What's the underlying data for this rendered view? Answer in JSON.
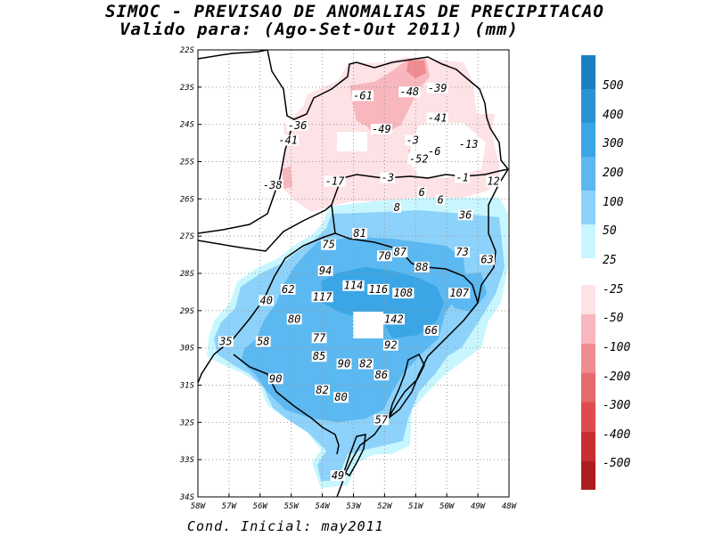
{
  "title_line1": "SIMOC - PREVISAO DE ANOMALIAS DE PRECIPITACAO",
  "title_line2": "Valido para: (Ago-Set-Out 2011) (mm)",
  "footer": "Cond. Inicial: may2011",
  "map": {
    "lon_range": [
      -58,
      -48
    ],
    "lat_range": [
      -34,
      -22
    ],
    "lon_ticks": [
      "58W",
      "57W",
      "56W",
      "55W",
      "54W",
      "53W",
      "52W",
      "51W",
      "50W",
      "49W",
      "48W"
    ],
    "lat_ticks": [
      "22S",
      "23S",
      "24S",
      "25S",
      "26S",
      "27S",
      "28S",
      "29S",
      "30S",
      "31S",
      "32S",
      "33S",
      "34S"
    ],
    "grid": "dotted",
    "value_labels": [
      {
        "text": "-61",
        "lon": -52.7,
        "lat": -23.3
      },
      {
        "text": "-48",
        "lon": -51.2,
        "lat": -23.2
      },
      {
        "text": "-39",
        "lon": -50.3,
        "lat": -23.1
      },
      {
        "text": "-41",
        "lon": -50.3,
        "lat": -23.9
      },
      {
        "text": "-36",
        "lon": -54.8,
        "lat": -24.1
      },
      {
        "text": "-49",
        "lon": -52.1,
        "lat": -24.2
      },
      {
        "text": "-41",
        "lon": -55.1,
        "lat": -24.5
      },
      {
        "text": "-3",
        "lon": -51.1,
        "lat": -24.5
      },
      {
        "text": "-13",
        "lon": -49.3,
        "lat": -24.6
      },
      {
        "text": "-6",
        "lon": -50.4,
        "lat": -24.8
      },
      {
        "text": "-52",
        "lon": -50.9,
        "lat": -25.0
      },
      {
        "text": "-38",
        "lon": -55.6,
        "lat": -25.7
      },
      {
        "text": "-17",
        "lon": -53.6,
        "lat": -25.6
      },
      {
        "text": "-3",
        "lon": -51.9,
        "lat": -25.5
      },
      {
        "text": "-1",
        "lon": -49.5,
        "lat": -25.5
      },
      {
        "text": "12",
        "lon": -48.5,
        "lat": -25.6
      },
      {
        "text": "8",
        "lon": -51.6,
        "lat": -26.3
      },
      {
        "text": "6",
        "lon": -50.8,
        "lat": -25.9
      },
      {
        "text": "6",
        "lon": -50.2,
        "lat": -26.1
      },
      {
        "text": "36",
        "lon": -49.4,
        "lat": -26.5
      },
      {
        "text": "81",
        "lon": -52.8,
        "lat": -27.0
      },
      {
        "text": "75",
        "lon": -53.8,
        "lat": -27.3
      },
      {
        "text": "87",
        "lon": -51.5,
        "lat": -27.5
      },
      {
        "text": "70",
        "lon": -52.0,
        "lat": -27.6
      },
      {
        "text": "73",
        "lon": -49.5,
        "lat": -27.5
      },
      {
        "text": "63",
        "lon": -48.7,
        "lat": -27.7
      },
      {
        "text": "88",
        "lon": -50.8,
        "lat": -27.9
      },
      {
        "text": "94",
        "lon": -53.9,
        "lat": -28.0
      },
      {
        "text": "62",
        "lon": -55.1,
        "lat": -28.5
      },
      {
        "text": "114",
        "lon": -53.0,
        "lat": -28.4
      },
      {
        "text": "116",
        "lon": -52.2,
        "lat": -28.5
      },
      {
        "text": "108",
        "lon": -51.4,
        "lat": -28.6
      },
      {
        "text": "107",
        "lon": -49.6,
        "lat": -28.6
      },
      {
        "text": "117",
        "lon": -54.0,
        "lat": -28.7
      },
      {
        "text": "40",
        "lon": -55.8,
        "lat": -28.8
      },
      {
        "text": "142",
        "lon": -51.7,
        "lat": -29.3
      },
      {
        "text": "80",
        "lon": -54.9,
        "lat": -29.3
      },
      {
        "text": "66",
        "lon": -50.5,
        "lat": -29.6
      },
      {
        "text": "77",
        "lon": -54.1,
        "lat": -29.8
      },
      {
        "text": "35",
        "lon": -57.1,
        "lat": -29.9
      },
      {
        "text": "58",
        "lon": -55.9,
        "lat": -29.9
      },
      {
        "text": "92",
        "lon": -51.8,
        "lat": -30.0
      },
      {
        "text": "85",
        "lon": -54.1,
        "lat": -30.3
      },
      {
        "text": "90",
        "lon": -53.3,
        "lat": -30.5
      },
      {
        "text": "82",
        "lon": -52.6,
        "lat": -30.5
      },
      {
        "text": "86",
        "lon": -52.1,
        "lat": -30.8
      },
      {
        "text": "90",
        "lon": -55.5,
        "lat": -30.9
      },
      {
        "text": "82",
        "lon": -54.0,
        "lat": -31.2
      },
      {
        "text": "80",
        "lon": -53.4,
        "lat": -31.4
      },
      {
        "text": "57",
        "lon": -52.1,
        "lat": -32.0
      },
      {
        "text": "49",
        "lon": -53.5,
        "lat": -33.5
      }
    ]
  },
  "colorbar_positive": {
    "labels": [
      "500",
      "400",
      "300",
      "200",
      "100",
      "50",
      "25"
    ],
    "colors": [
      "#1a7fc1",
      "#2a92d4",
      "#3aa6e6",
      "#5cb8f0",
      "#8dd2fa",
      "#c8f6ff"
    ]
  },
  "colorbar_negative": {
    "labels": [
      "-25",
      "-50",
      "-100",
      "-200",
      "-300",
      "-400",
      "-500"
    ],
    "colors": [
      "#fde2e6",
      "#f7b7bd",
      "#ee8c90",
      "#e56a6d",
      "#dd4b4d",
      "#c92f31",
      "#ad1d20"
    ]
  }
}
